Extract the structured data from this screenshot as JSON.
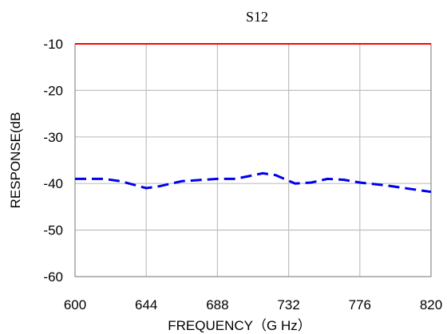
{
  "chart_data": {
    "type": "line",
    "title": "S12",
    "xlabel": "FREQUENCY（G Hz）",
    "ylabel": "RESPONSE(dB",
    "xlim": [
      600,
      820
    ],
    "ylim": [
      -60,
      -10
    ],
    "x_ticks": [
      "600",
      "644",
      "688",
      "732",
      "776",
      "820"
    ],
    "y_ticks": [
      "-10",
      "-20",
      "-30",
      "-40",
      "-50",
      "-60"
    ],
    "grid": true,
    "legend": "none",
    "series": [
      {
        "color": "#ff0000",
        "style": "solid",
        "x": [
          600,
          820
        ],
        "y": [
          -10,
          -10
        ]
      },
      {
        "color": "#0000ee",
        "style": "dashed",
        "x": [
          600,
          618,
          628,
          644,
          652,
          666,
          688,
          699,
          716,
          724,
          736,
          746,
          756,
          766,
          776,
          792,
          810,
          820
        ],
        "y": [
          -39,
          -39,
          -39.5,
          -41,
          -40.6,
          -39.5,
          -39,
          -39,
          -37.8,
          -38.2,
          -40,
          -39.8,
          -39,
          -39.2,
          -39.8,
          -40.4,
          -41.3,
          -41.8
        ]
      }
    ]
  }
}
